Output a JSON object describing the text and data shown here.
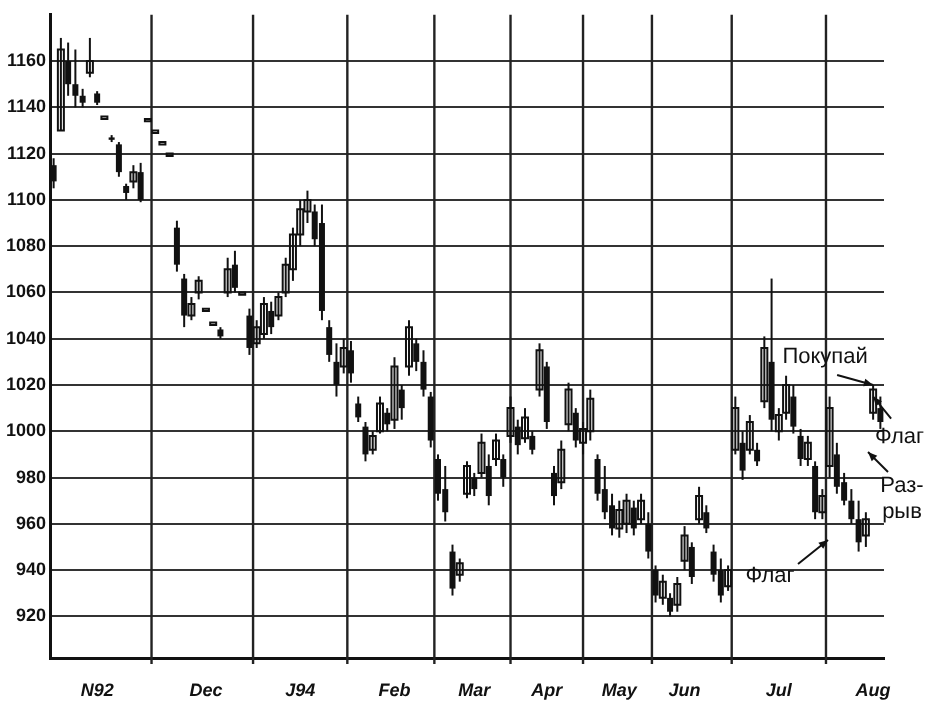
{
  "chart_data": {
    "type": "candlestick",
    "color": "#111111",
    "grid": true,
    "categories": [
      null,
      null,
      null,
      null,
      null,
      null,
      "N92",
      null,
      null,
      null,
      null,
      null,
      null,
      null,
      null,
      null,
      null,
      null,
      null,
      null,
      null,
      "Dec",
      null,
      null,
      null,
      null,
      null,
      null,
      null,
      null,
      null,
      null,
      null,
      null,
      "J94",
      null,
      null,
      null,
      null,
      null,
      null,
      null,
      null,
      null,
      null,
      null,
      null,
      "Feb",
      null,
      null,
      null,
      null,
      null,
      null,
      null,
      null,
      null,
      null,
      "Mar",
      null,
      null,
      null,
      null,
      null,
      null,
      null,
      null,
      null,
      "Apr",
      null,
      null,
      null,
      null,
      null,
      null,
      null,
      null,
      null,
      "May",
      null,
      null,
      null,
      null,
      null,
      null,
      null,
      null,
      "Jun",
      null,
      null,
      null,
      null,
      null,
      null,
      null,
      null,
      null,
      null,
      null,
      null,
      "Jul",
      null,
      null,
      null,
      null,
      null,
      null,
      null,
      null,
      null,
      null,
      null,
      null,
      "Aug",
      null
    ],
    "ohlc": [
      [
        1115,
        1118,
        1105,
        1108
      ],
      [
        1130,
        1170,
        1130,
        1165
      ],
      [
        1160,
        1168,
        1145,
        1150
      ],
      [
        1150,
        1165,
        1140,
        1145
      ],
      [
        1145,
        1148,
        1140,
        1142
      ],
      [
        1155,
        1170,
        1153,
        1160
      ],
      [
        1146,
        1147,
        1141,
        1142
      ],
      [
        1136,
        1136,
        1136,
        1136
      ],
      [
        1127,
        1128,
        1125,
        1126
      ],
      [
        1124,
        1125,
        1110,
        1112
      ],
      [
        1106,
        1107,
        1100,
        1103
      ],
      [
        1108,
        1115,
        1105,
        1112
      ],
      [
        1112,
        1116,
        1099,
        1100
      ],
      [
        1135,
        1135,
        1135,
        1135
      ],
      [
        1130,
        1130,
        1130,
        1130
      ],
      [
        1125,
        1125,
        1125,
        1125
      ],
      [
        1120,
        1120,
        1120,
        1120
      ],
      [
        1088,
        1091,
        1069,
        1072
      ],
      [
        1066,
        1068,
        1045,
        1050
      ],
      [
        1050,
        1058,
        1048,
        1055
      ],
      [
        1060,
        1067,
        1057,
        1065
      ],
      [
        1053,
        1053,
        1053,
        1053
      ],
      [
        1047,
        1047,
        1047,
        1047
      ],
      [
        1044,
        1045,
        1040,
        1041
      ],
      [
        1060,
        1075,
        1058,
        1070
      ],
      [
        1072,
        1078,
        1060,
        1062
      ],
      [
        1060,
        1060,
        1060,
        1060
      ],
      [
        1050,
        1053,
        1033,
        1036
      ],
      [
        1038,
        1048,
        1036,
        1045
      ],
      [
        1042,
        1058,
        1040,
        1055
      ],
      [
        1052,
        1056,
        1042,
        1045
      ],
      [
        1050,
        1060,
        1048,
        1058
      ],
      [
        1060,
        1075,
        1058,
        1072
      ],
      [
        1070,
        1088,
        1065,
        1085
      ],
      [
        1085,
        1100,
        1080,
        1096
      ],
      [
        1095,
        1104,
        1090,
        1100
      ],
      [
        1095,
        1098,
        1080,
        1083
      ],
      [
        1090,
        1098,
        1048,
        1052
      ],
      [
        1045,
        1048,
        1030,
        1033
      ],
      [
        1030,
        1038,
        1015,
        1020
      ],
      [
        1028,
        1040,
        1025,
        1036
      ],
      [
        1035,
        1039,
        1021,
        1025
      ],
      [
        1012,
        1015,
        1004,
        1006
      ],
      [
        1002,
        1004,
        987,
        990
      ],
      [
        992,
        1000,
        990,
        998
      ],
      [
        1000,
        1015,
        999,
        1012
      ],
      [
        1008,
        1010,
        1000,
        1003
      ],
      [
        1005,
        1032,
        1001,
        1028
      ],
      [
        1018,
        1020,
        1005,
        1010
      ],
      [
        1028,
        1048,
        1024,
        1045
      ],
      [
        1038,
        1040,
        1026,
        1030
      ],
      [
        1030,
        1035,
        1015,
        1018
      ],
      [
        1015,
        1017,
        993,
        996
      ],
      [
        988,
        990,
        970,
        973
      ],
      [
        975,
        985,
        961,
        965
      ],
      [
        948,
        951,
        929,
        932
      ],
      [
        938,
        945,
        935,
        943
      ],
      [
        973,
        987,
        971,
        985
      ],
      [
        980,
        982,
        972,
        975
      ],
      [
        982,
        999,
        980,
        995
      ],
      [
        985,
        990,
        968,
        972
      ],
      [
        988,
        999,
        985,
        996
      ],
      [
        988,
        990,
        976,
        980
      ],
      [
        998,
        1015,
        995,
        1010
      ],
      [
        1002,
        1005,
        990,
        994
      ],
      [
        997,
        1010,
        995,
        1006
      ],
      [
        998,
        1000,
        990,
        992
      ],
      [
        1018,
        1038,
        1015,
        1035
      ],
      [
        1028,
        1030,
        1001,
        1004
      ],
      [
        982,
        985,
        968,
        972
      ],
      [
        978,
        996,
        975,
        992
      ],
      [
        1003,
        1021,
        1000,
        1018
      ],
      [
        1008,
        1010,
        993,
        996
      ],
      [
        995,
        1004,
        990,
        1001
      ],
      [
        1000,
        1018,
        996,
        1014
      ],
      [
        988,
        990,
        970,
        973
      ],
      [
        975,
        985,
        962,
        965
      ],
      [
        968,
        973,
        955,
        958
      ],
      [
        958,
        970,
        954,
        966
      ],
      [
        960,
        973,
        956,
        970
      ],
      [
        967,
        970,
        955,
        958
      ],
      [
        962,
        973,
        960,
        970
      ],
      [
        960,
        965,
        945,
        948
      ],
      [
        940,
        942,
        926,
        929
      ],
      [
        928,
        938,
        925,
        935
      ],
      [
        928,
        930,
        920,
        922
      ],
      [
        925,
        937,
        922,
        934
      ],
      [
        944,
        959,
        940,
        955
      ],
      [
        950,
        952,
        934,
        937
      ],
      [
        962,
        976,
        960,
        972
      ],
      [
        965,
        968,
        956,
        958
      ],
      [
        948,
        951,
        935,
        938
      ],
      [
        940,
        945,
        926,
        929
      ],
      [
        933,
        942,
        931,
        940
      ],
      [
        992,
        1015,
        990,
        1010
      ],
      [
        995,
        1000,
        979,
        983
      ],
      [
        992,
        1007,
        990,
        1004
      ],
      [
        992,
        995,
        985,
        987
      ],
      [
        1013,
        1041,
        1010,
        1036
      ],
      [
        1030,
        1066,
        1000,
        1005
      ],
      [
        1000,
        1010,
        996,
        1007
      ],
      [
        1008,
        1024,
        1005,
        1020
      ],
      [
        1015,
        1020,
        999,
        1002
      ],
      [
        998,
        1001,
        985,
        988
      ],
      [
        988,
        998,
        985,
        995
      ],
      [
        985,
        987,
        962,
        965
      ],
      [
        965,
        975,
        962,
        972
      ],
      [
        985,
        1015,
        980,
        1010
      ],
      [
        990,
        995,
        973,
        976
      ],
      [
        978,
        982,
        968,
        970
      ],
      [
        970,
        975,
        960,
        962
      ],
      [
        962,
        970,
        948,
        952
      ],
      [
        955,
        965,
        950,
        962
      ],
      [
        1008,
        1020,
        1005,
        1018
      ],
      [
        1010,
        1015,
        1001,
        1004
      ]
    ],
    "ylim": [
      902,
      1180
    ],
    "yticks": [
      920,
      940,
      960,
      980,
      1000,
      1020,
      1040,
      1060,
      1080,
      1100,
      1120,
      1140,
      1160
    ],
    "annotations": [
      {
        "text": "Покупай",
        "x": "Aug",
        "y": 1020
      },
      {
        "text": "Флаг",
        "x": "Aug",
        "y": 1015
      },
      "Раз-\nрыв",
      "Флаг"
    ]
  }
}
